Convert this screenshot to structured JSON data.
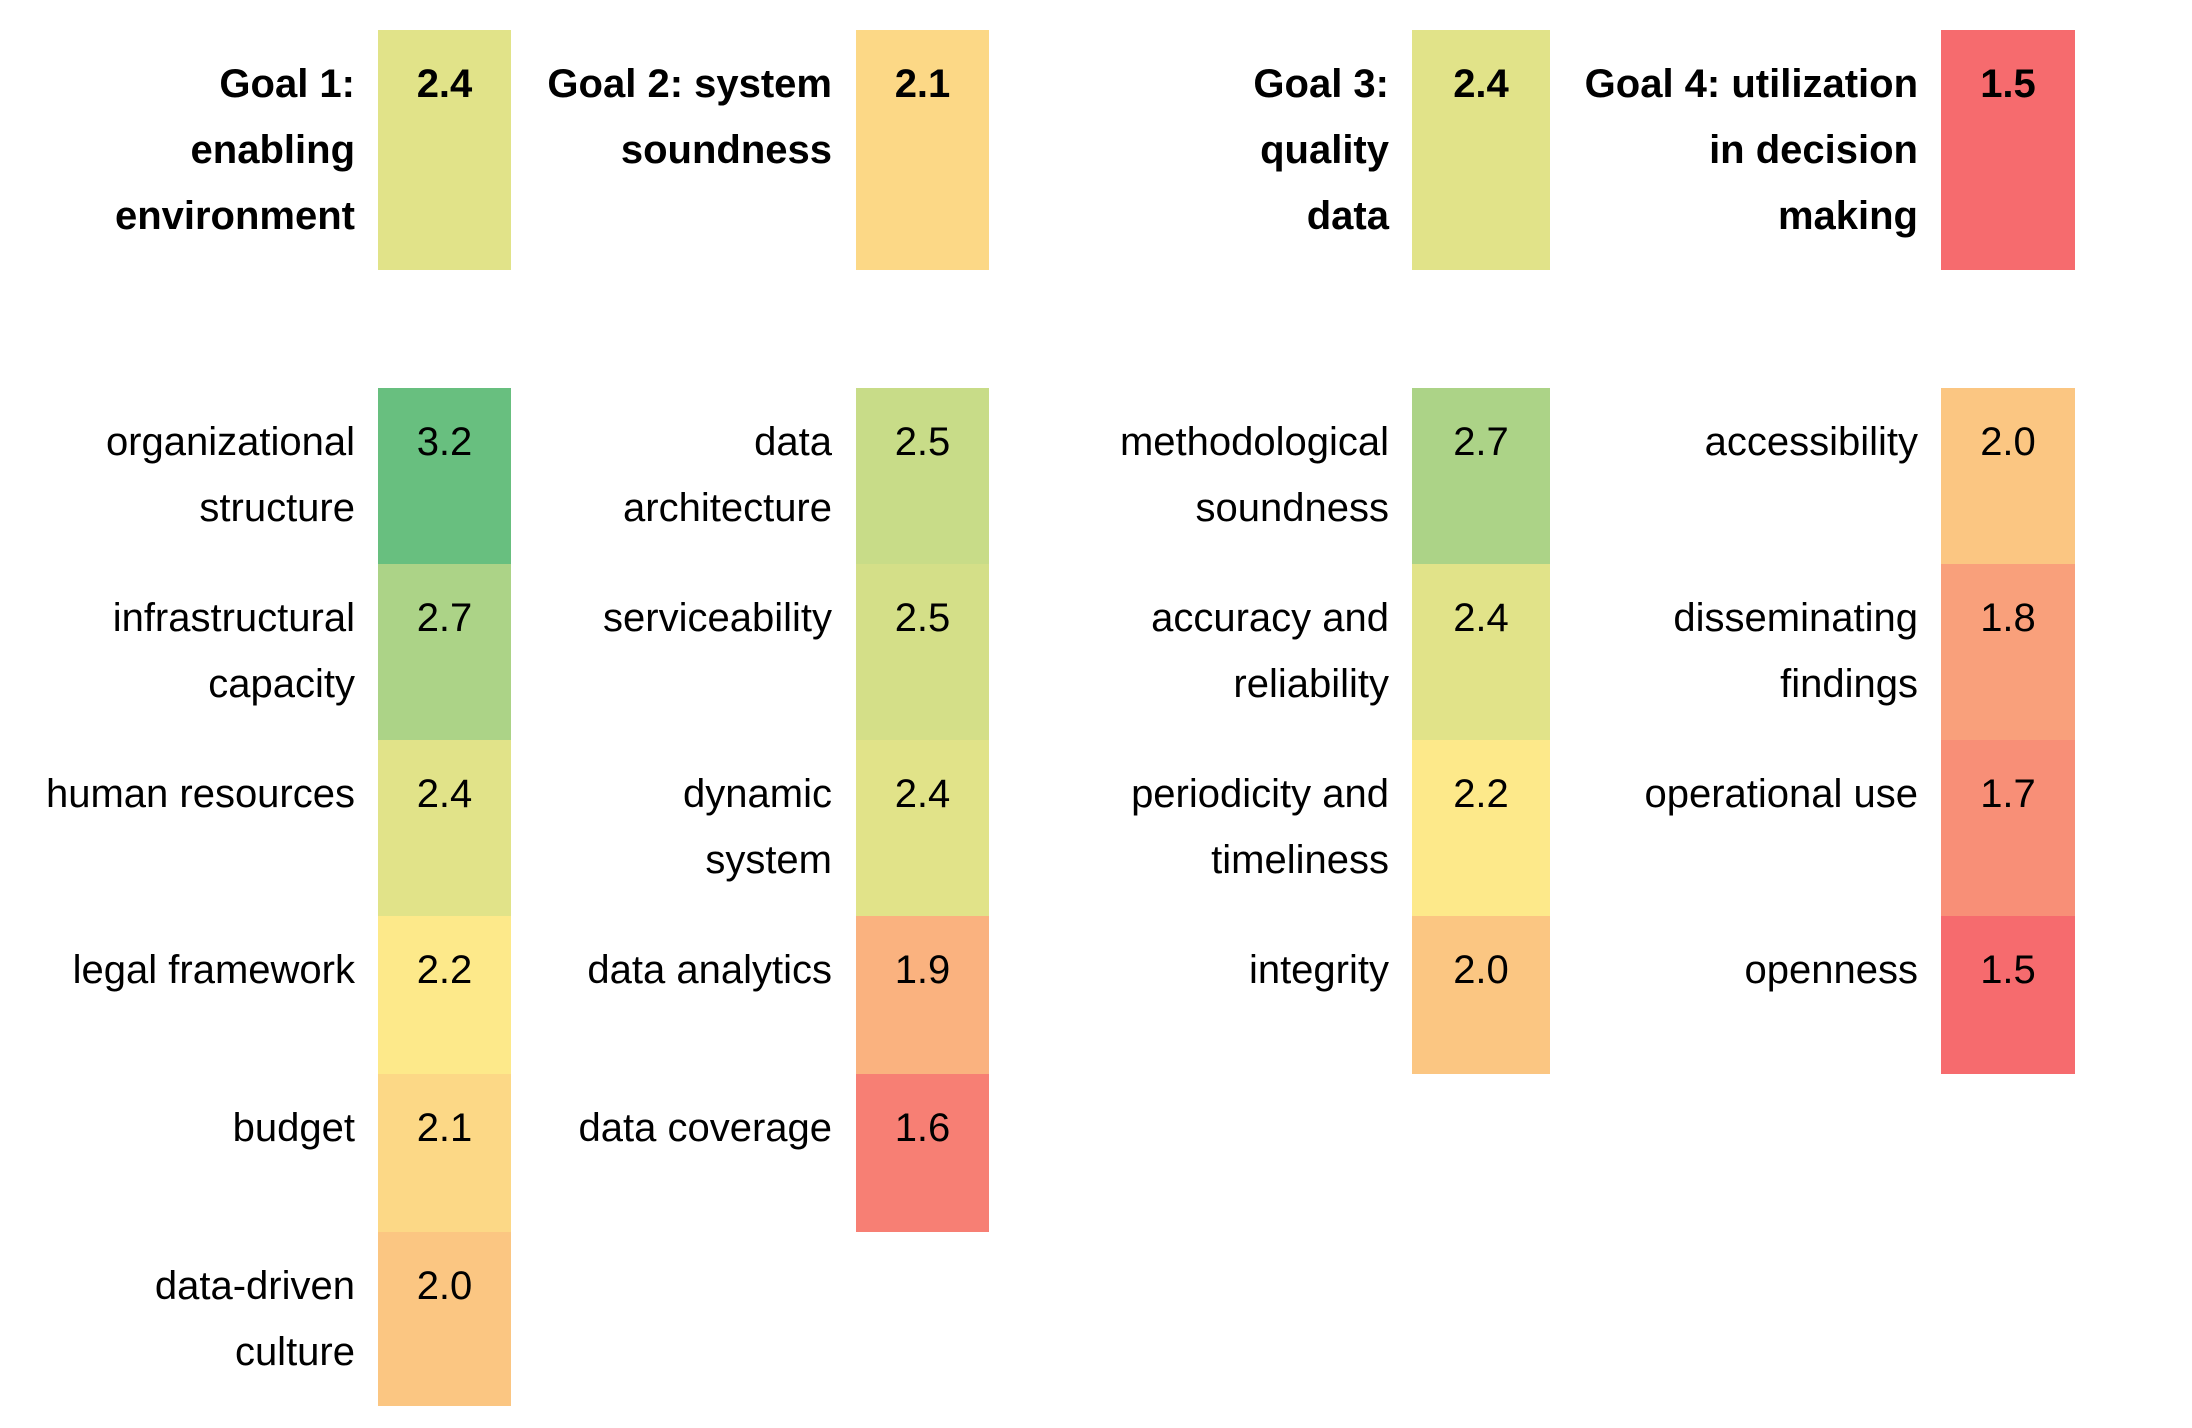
{
  "chart_data": {
    "type": "table",
    "goals": [
      {
        "label": "Goal 1:\nenabling\nenvironment",
        "value": "2.4",
        "color": "#e1e389",
        "items": [
          {
            "label": "organizational\nstructure",
            "value": "3.2",
            "color": "#68bf7f"
          },
          {
            "label": "infrastructural\ncapacity",
            "value": "2.7",
            "color": "#acd387"
          },
          {
            "label": "human resources",
            "value": "2.4",
            "color": "#e1e389"
          },
          {
            "label": "legal framework",
            "value": "2.2",
            "color": "#fde98a"
          },
          {
            "label": "budget",
            "value": "2.1",
            "color": "#fcd886"
          },
          {
            "label": "data-driven\nculture",
            "value": "2.0",
            "color": "#fbc682"
          }
        ]
      },
      {
        "label": "Goal 2: system\nsoundness",
        "value": "2.1",
        "color": "#fcd886",
        "items": [
          {
            "label": "data\narchitecture",
            "value": "2.5",
            "color": "#c8dc88"
          },
          {
            "label": "serviceability",
            "value": "2.5",
            "color": "#d4df88"
          },
          {
            "label": "dynamic\nsystem",
            "value": "2.4",
            "color": "#e1e389"
          },
          {
            "label": "data analytics",
            "value": "1.9",
            "color": "#fab27f"
          },
          {
            "label": "data coverage",
            "value": "1.6",
            "color": "#f77f74"
          }
        ]
      },
      {
        "label": "Goal 3:\nquality\ndata",
        "value": "2.4",
        "color": "#e1e389",
        "items": [
          {
            "label": "methodological\nsoundness",
            "value": "2.7",
            "color": "#acd387"
          },
          {
            "label": "accuracy and\nreliability",
            "value": "2.4",
            "color": "#e1e389"
          },
          {
            "label": "periodicity and\ntimeliness",
            "value": "2.2",
            "color": "#fde98a"
          },
          {
            "label": "integrity",
            "value": "2.0",
            "color": "#fbc682"
          }
        ]
      },
      {
        "label": "Goal 4: utilization\nin decision\nmaking",
        "value": "1.5",
        "color": "#f66b6e",
        "items": [
          {
            "label": "accessibility",
            "value": "2.0",
            "color": "#fbc682"
          },
          {
            "label": "disseminating\nfindings",
            "value": "1.8",
            "color": "#f9a07b"
          },
          {
            "label": "operational use",
            "value": "1.7",
            "color": "#f88f77"
          },
          {
            "label": "openness",
            "value": "1.5",
            "color": "#f66b6e"
          }
        ]
      }
    ]
  }
}
